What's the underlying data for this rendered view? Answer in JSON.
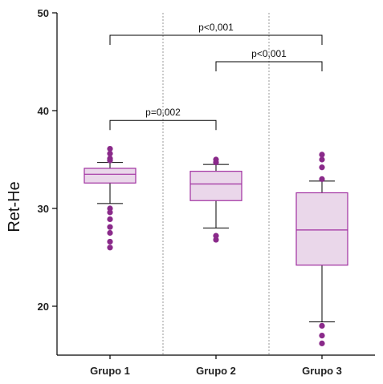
{
  "chart_data": {
    "type": "box",
    "ylabel": "Ret-He",
    "xlabel": "",
    "title": "",
    "ylim": [
      15,
      50
    ],
    "yticks": [
      20,
      30,
      40,
      50
    ],
    "grid": false,
    "colors": {
      "box_fill": "#ead7ea",
      "box_stroke": "#a02fa0",
      "outlier": "#8a2a8a",
      "whisker": "#000000",
      "divider": "#999999"
    },
    "groups": [
      {
        "name": "Grupo 1",
        "q1": 32.6,
        "median": 33.5,
        "q3": 34.1,
        "whisker_low": 30.5,
        "whisker_high": 34.7,
        "outliers": [
          36.1,
          35.6,
          35.1,
          34.9,
          30.0,
          29.6,
          28.9,
          28.1,
          27.5,
          26.6,
          26.0
        ]
      },
      {
        "name": "Grupo 2",
        "q1": 30.8,
        "median": 32.5,
        "q3": 33.8,
        "whisker_low": 28.0,
        "whisker_high": 34.5,
        "outliers": [
          35.0,
          34.7,
          27.2,
          26.8
        ]
      },
      {
        "name": "Grupo 3",
        "q1": 24.2,
        "median": 27.8,
        "q3": 31.6,
        "whisker_low": 18.4,
        "whisker_high": 32.8,
        "outliers": [
          35.5,
          35.0,
          34.2,
          33.0,
          18.0,
          17.0,
          16.2
        ]
      }
    ],
    "annotations": [
      {
        "from": 0,
        "to": 1,
        "y": 39.0,
        "label": "p=0,002"
      },
      {
        "from": 1,
        "to": 2,
        "y": 45.0,
        "label": "p<0,001"
      },
      {
        "from": 0,
        "to": 2,
        "y": 47.7,
        "label": "p<0,001"
      }
    ]
  }
}
